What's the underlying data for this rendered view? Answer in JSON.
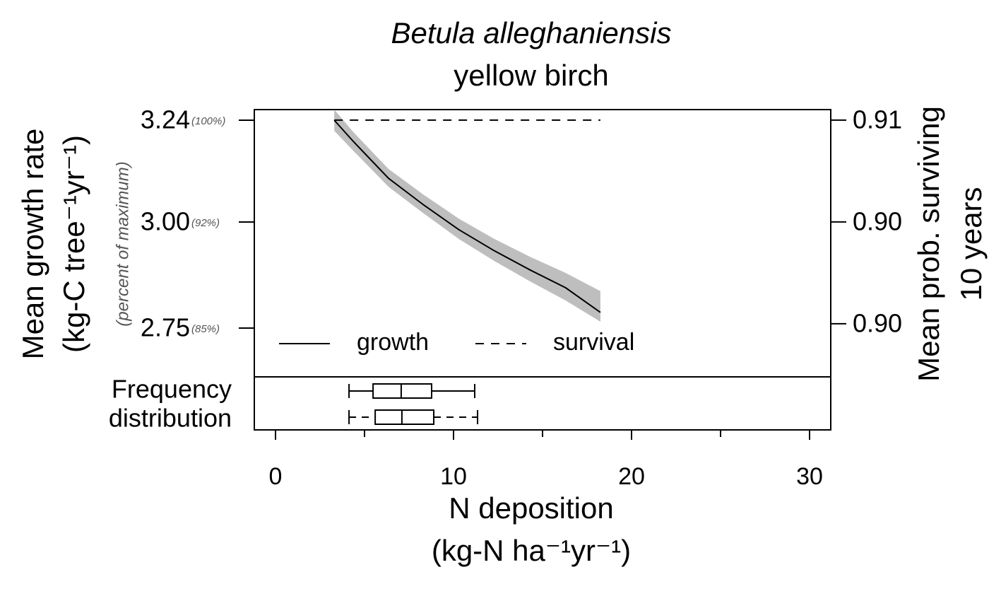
{
  "chart_data": {
    "type": "line",
    "title": "Betula alleghaniensis",
    "subtitle": "yellow birch",
    "xlabel": [
      "N deposition",
      "(kg-N ha⁻¹yr⁻¹)"
    ],
    "ylabel": [
      "Mean growth rate",
      "(kg-C tree⁻¹yr⁻¹)"
    ],
    "ylabel_note": "(percent of maximum)",
    "y2label": [
      "Mean prob. surviving",
      "10 years"
    ],
    "xlim": [
      -1.19,
      31.19
    ],
    "xticks": [
      0,
      10,
      20,
      30
    ],
    "xminor_ticks": [
      5,
      15,
      25
    ],
    "ylim": [
      2.635,
      3.265
    ],
    "yticks": [
      3.24,
      {
        "value": 3,
        "label": "3.00"
      },
      2.75
    ],
    "ytick_notes": [
      "(100%)",
      "(92%)",
      "(85%)"
    ],
    "y2lim": [
      0.89487,
      0.91062
    ],
    "y2ticks": [
      {
        "value": 0.91,
        "label": "0.91"
      },
      {
        "value": 0.904,
        "label": "0.90"
      },
      {
        "value": 0.898,
        "label": "0.90"
      }
    ],
    "legend": "lower left",
    "series": [
      {
        "name": "growth",
        "color": "#000000",
        "band_color": "#bebebe",
        "dash": false,
        "x": [
          3.3,
          4.37,
          6.35,
          8.33,
          10.3,
          12.3,
          14.3,
          16.3,
          18.25
        ],
        "values": [
          3.24,
          3.19,
          3.103,
          3.04,
          2.982,
          2.932,
          2.887,
          2.845,
          2.787
        ],
        "lower": [
          3.215,
          3.168,
          3.083,
          3.02,
          2.96,
          2.908,
          2.86,
          2.815,
          2.765
        ],
        "upper": [
          3.265,
          3.212,
          3.125,
          3.064,
          3.008,
          2.96,
          2.918,
          2.88,
          2.837
        ]
      },
      {
        "name": "survival",
        "color": "#000000",
        "dash": true,
        "axis": "y2",
        "x": [
          3.3,
          18.25
        ],
        "values": [
          0.91,
          0.91
        ]
      }
    ],
    "boxplot": {
      "label": [
        "Frequency",
        "distribution"
      ],
      "boxes": [
        {
          "min": 4.13,
          "q1": 5.48,
          "median": 7.06,
          "q3": 8.77,
          "max": 11.19,
          "dash": false
        },
        {
          "min": 4.13,
          "q1": 5.6,
          "median": 7.1,
          "q3": 8.89,
          "max": 11.35,
          "dash": true
        }
      ]
    }
  }
}
